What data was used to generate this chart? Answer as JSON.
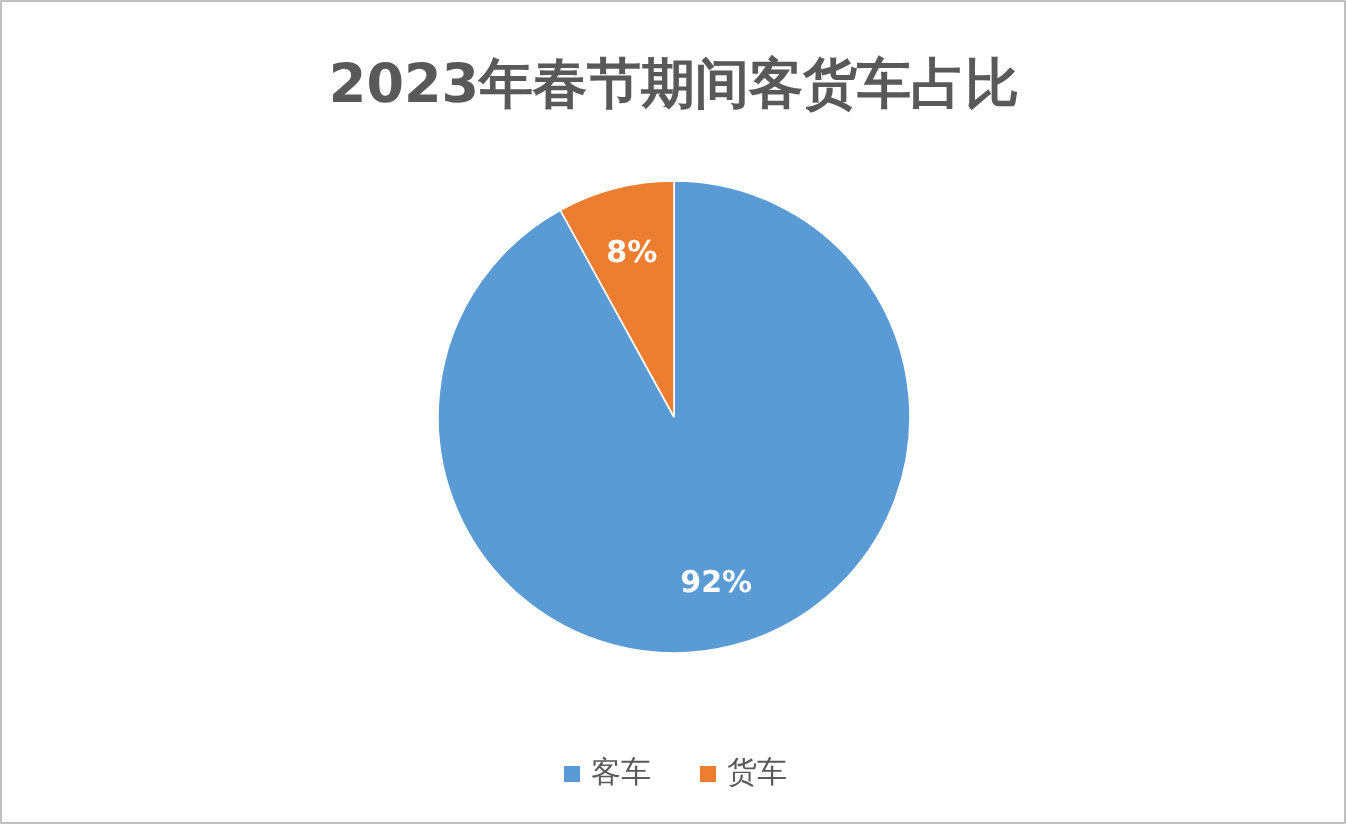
{
  "chart_data": {
    "type": "pie",
    "title": "2023年春节期间客货车占比",
    "categories": [
      "客车",
      "货车"
    ],
    "values": [
      92,
      8
    ],
    "colors": [
      "#5b9bd5",
      "#ed7d31"
    ],
    "value_labels": [
      "92%",
      "8%"
    ],
    "legend": "bottom"
  }
}
